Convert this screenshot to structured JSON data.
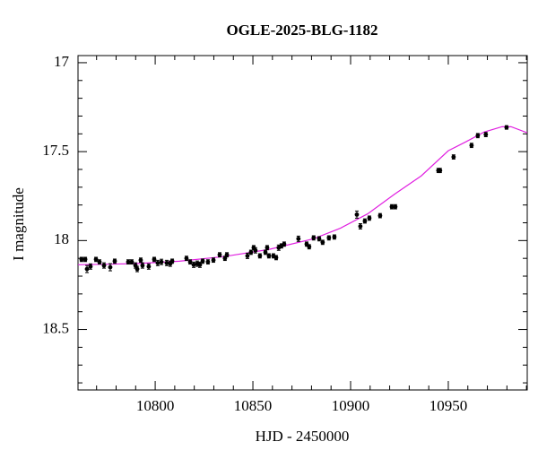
{
  "chart_data": {
    "type": "scatter",
    "title": "OGLE-2025-BLG-1182",
    "xlabel": "HJD - 2450000",
    "ylabel": "I magnitude",
    "color": "#000000",
    "x": [
      10762.3,
      10764.2,
      10765.1,
      10766.9,
      10769.7,
      10771.5,
      10773.8,
      10777.0,
      10779.3,
      10786.2,
      10788.0,
      10789.9,
      10790.8,
      10792.6,
      10793.5,
      10796.7,
      10799.5,
      10801.3,
      10803.2,
      10805.9,
      10807.7,
      10808.7,
      10816.0,
      10817.9,
      10819.7,
      10821.5,
      10822.9,
      10824.3,
      10827.0,
      10829.8,
      10833.0,
      10835.7,
      10836.7,
      10847.2,
      10849.0,
      10850.4,
      10851.3,
      10853.6,
      10856.4,
      10857.3,
      10858.2,
      10860.5,
      10861.9,
      10863.2,
      10864.6,
      10866.0,
      10873.3,
      10877.5,
      10878.8,
      10881.1,
      10883.9,
      10885.7,
      10888.9,
      10891.7,
      10903.2,
      10905.0,
      10907.3,
      10909.6,
      10915.1,
      10921.1,
      10922.9,
      10944.9,
      10945.8,
      10952.7,
      10961.9,
      10965.1,
      10969.2,
      10979.8
    ],
    "values": [
      18.106,
      18.106,
      18.16,
      18.146,
      18.106,
      18.12,
      18.14,
      18.15,
      18.116,
      18.12,
      18.12,
      18.14,
      18.16,
      18.11,
      18.14,
      18.146,
      18.106,
      18.126,
      18.12,
      18.126,
      18.13,
      18.116,
      18.1,
      18.12,
      18.136,
      18.13,
      18.136,
      18.116,
      18.12,
      18.11,
      18.08,
      18.1,
      18.08,
      18.086,
      18.066,
      18.04,
      18.055,
      18.086,
      18.066,
      18.04,
      18.086,
      18.086,
      18.096,
      18.04,
      18.03,
      18.02,
      17.99,
      18.02,
      18.035,
      17.985,
      17.99,
      18.01,
      17.985,
      17.98,
      17.854,
      17.92,
      17.89,
      17.874,
      17.86,
      17.81,
      17.81,
      17.606,
      17.606,
      17.53,
      17.465,
      17.41,
      17.404,
      17.364
    ],
    "errors": [
      0.012,
      0.012,
      0.02,
      0.015,
      0.012,
      0.012,
      0.015,
      0.02,
      0.012,
      0.012,
      0.012,
      0.015,
      0.015,
      0.012,
      0.015,
      0.015,
      0.012,
      0.015,
      0.015,
      0.015,
      0.015,
      0.012,
      0.012,
      0.012,
      0.015,
      0.015,
      0.015,
      0.012,
      0.012,
      0.012,
      0.012,
      0.012,
      0.012,
      0.015,
      0.012,
      0.012,
      0.015,
      0.012,
      0.012,
      0.012,
      0.012,
      0.012,
      0.012,
      0.015,
      0.012,
      0.012,
      0.015,
      0.012,
      0.012,
      0.012,
      0.012,
      0.012,
      0.012,
      0.012,
      0.02,
      0.015,
      0.012,
      0.012,
      0.012,
      0.012,
      0.012,
      0.012,
      0.012,
      0.012,
      0.012,
      0.012,
      0.012,
      0.01
    ],
    "model": {
      "color": "#e020e0",
      "x": [
        10760.5,
        10789.4,
        10812.3,
        10835.3,
        10858.2,
        10881.1,
        10894.9,
        10908.7,
        10922.4,
        10936.2,
        10950.0,
        10959.1,
        10968.3,
        10977.5,
        10982.1,
        10990.4
      ],
      "values": [
        18.136,
        18.13,
        18.116,
        18.09,
        18.05,
        17.99,
        17.93,
        17.85,
        17.74,
        17.636,
        17.495,
        17.444,
        17.39,
        17.36,
        17.36,
        17.394
      ]
    },
    "xlim": [
      10760.5,
      10990.4
    ],
    "ylim": [
      16.96,
      18.84
    ],
    "y_inverted": true,
    "xticks": [
      10800,
      10850,
      10900,
      10950
    ],
    "yticks": [
      17,
      17.5,
      18,
      18.5
    ],
    "xminor": [
      10770,
      10780,
      10790,
      10810,
      10820,
      10830,
      10840,
      10860,
      10870,
      10880,
      10890,
      10910,
      10920,
      10930,
      10940,
      10960,
      10970,
      10980,
      10990
    ],
    "yminor": [
      17.1,
      17.2,
      17.3,
      17.4,
      17.6,
      17.7,
      17.8,
      17.9,
      18.1,
      18.2,
      18.3,
      18.4,
      18.6,
      18.7,
      18.8
    ]
  }
}
